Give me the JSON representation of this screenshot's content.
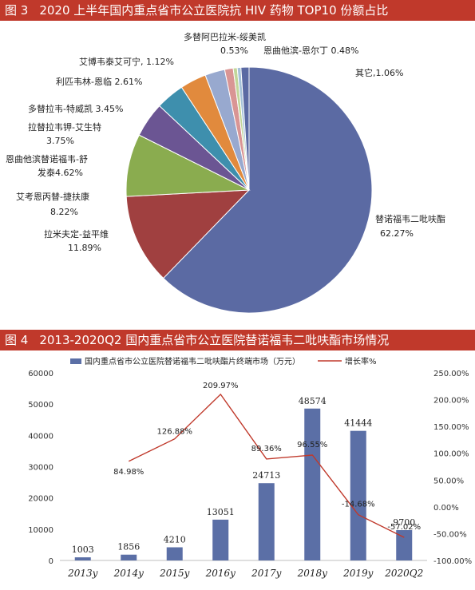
{
  "figure3": {
    "number": "图 3",
    "title": "2020 上半年国内重点省市公立医院抗 HIV 药物 TOP10 份额占比"
  },
  "figure4": {
    "number": "图 4",
    "title": "2013-2020Q2 国内重点省市公立医院替诺福韦二吡呋酯市场情况"
  },
  "colors": {
    "banner": "#c0392b",
    "bar": "#5b6fa6",
    "line": "#c0392b",
    "pie": [
      "#5b6aa3",
      "#a04040",
      "#8aac4f",
      "#6b5593",
      "#3e8fad",
      "#e18a3d",
      "#98a9cf",
      "#d99594",
      "#c2d69b",
      "#a6c2d9"
    ]
  },
  "chart_data": [
    {
      "type": "pie",
      "title": "2020 上半年国内重点省市公立医院抗 HIV 药物 TOP10 份额占比",
      "slices": [
        {
          "name": "替诺福韦二吡呋酯",
          "pct": "62.27%",
          "value": 62.27
        },
        {
          "name": "拉米夫定-益平维",
          "pct": "11.89%",
          "value": 11.89
        },
        {
          "name": "艾考恩丙替-捷扶康",
          "pct": "8.22%",
          "value": 8.22
        },
        {
          "name": "恩曲他滨替诺福韦-舒发泰",
          "pct": "4.62%",
          "value": 4.62
        },
        {
          "name": "拉替拉韦钾-艾生特",
          "pct": "3.75%",
          "value": 3.75
        },
        {
          "name": "多替拉韦-特威凯",
          "pct": "3.45%",
          "value": 3.45
        },
        {
          "name": "利匹韦林-恩临",
          "pct": "2.61%",
          "value": 2.61
        },
        {
          "name": "艾博韦泰艾可宁",
          "pct": "1.12%",
          "value": 1.12
        },
        {
          "name": "多替阿巴拉米-绥美凯",
          "pct": "0.53%",
          "value": 0.53
        },
        {
          "name": "恩曲他滨-恩尔丁",
          "pct": "0.48%",
          "value": 0.48
        },
        {
          "name": "其它",
          "pct": "1.06%",
          "value": 1.06
        }
      ]
    },
    {
      "type": "bar",
      "title": "2013-2020Q2 国内重点省市公立医院替诺福韦二吡呋酯市场情况",
      "categories": [
        "2013y",
        "2014y",
        "2015y",
        "2016y",
        "2017y",
        "2018y",
        "2019y",
        "2020Q2"
      ],
      "series": [
        {
          "name": "国内重点省市公立医院替诺福韦二吡呋酯片终端市场（万元）",
          "type": "bar",
          "axis": "left",
          "values": [
            1003,
            1856,
            4210,
            13051,
            24713,
            48574,
            41444,
            9700
          ]
        },
        {
          "name": "增长率%",
          "type": "line",
          "axis": "right",
          "values": [
            null,
            84.98,
            126.88,
            209.97,
            89.36,
            96.55,
            -14.68,
            -57.02
          ],
          "labels": [
            "",
            "84.98%",
            "126.88%",
            "209.97%",
            "89.36%",
            "96.55%",
            "-14.68%",
            "-57.02%"
          ]
        }
      ],
      "yleft": {
        "lim": [
          0,
          60000
        ],
        "ticks": [
          "0",
          "10000",
          "20000",
          "30000",
          "40000",
          "50000",
          "60000"
        ]
      },
      "yright": {
        "lim": [
          -100,
          250
        ],
        "ticks": [
          "-100.00%",
          "-50.00%",
          "0.00%",
          "50.00%",
          "100.00%",
          "150.00%",
          "200.00%",
          "250.00%"
        ]
      }
    }
  ]
}
